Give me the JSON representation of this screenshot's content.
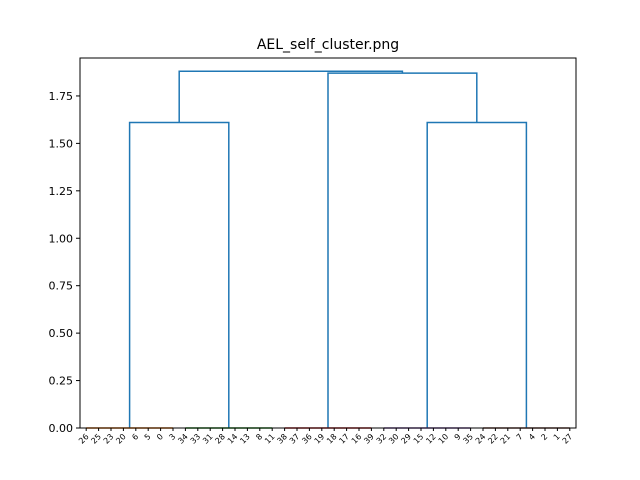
{
  "chart_data": {
    "type": "dendrogram",
    "title": "AEL_self_cluster.png",
    "xlabel": "",
    "ylabel": "",
    "ylim": [
      0,
      1.95
    ],
    "y_ticks": [
      0.0,
      0.25,
      0.5,
      0.75,
      1.0,
      1.25,
      1.5,
      1.75
    ],
    "y_tick_labels": [
      "0.00",
      "0.25",
      "0.50",
      "0.75",
      "1.00",
      "1.25",
      "1.50",
      "1.75"
    ],
    "grid": false,
    "leaves": [
      "26",
      "25",
      "23",
      "20",
      "6",
      "5",
      "0",
      "3",
      "34",
      "33",
      "31",
      "28",
      "14",
      "13",
      "8",
      "11",
      "38",
      "37",
      "36",
      "19",
      "18",
      "17",
      "16",
      "39",
      "32",
      "30",
      "29",
      "15",
      "12",
      "10",
      "9",
      "35",
      "24",
      "22",
      "21",
      "7",
      "4",
      "2",
      "1",
      "27"
    ],
    "clusters": [
      {
        "leaves": [
          "26",
          "25",
          "23",
          "20",
          "6",
          "5",
          "0",
          "3"
        ],
        "merge_height": 0.0,
        "color": "#ff7f0e"
      },
      {
        "leaves": [
          "34",
          "33",
          "31",
          "28",
          "14",
          "13",
          "8",
          "11"
        ],
        "merge_height": 0.0,
        "color": "#2ca02c"
      },
      {
        "leaves": [
          "38",
          "37",
          "36",
          "19",
          "18",
          "17",
          "16",
          "39"
        ],
        "merge_height": 0.0,
        "color": "#d62728"
      },
      {
        "leaves": [
          "32",
          "30",
          "29",
          "15",
          "12",
          "10",
          "9",
          "35"
        ],
        "merge_height": 0.0,
        "color": "#9467bd"
      },
      {
        "leaves": [
          "24",
          "22",
          "21",
          "7",
          "4",
          "2",
          "1",
          "27"
        ],
        "merge_height": 0.0,
        "color": "#8c564b"
      }
    ],
    "merges": [
      {
        "children": [
          0,
          1
        ],
        "height": 1.61
      },
      {
        "children": [
          3,
          4
        ],
        "height": 1.61
      },
      {
        "children": [
          2,
          6
        ],
        "height": 1.87
      },
      {
        "children": [
          5,
          7
        ],
        "height": 1.88
      }
    ],
    "link_color": "#1f77b4"
  }
}
